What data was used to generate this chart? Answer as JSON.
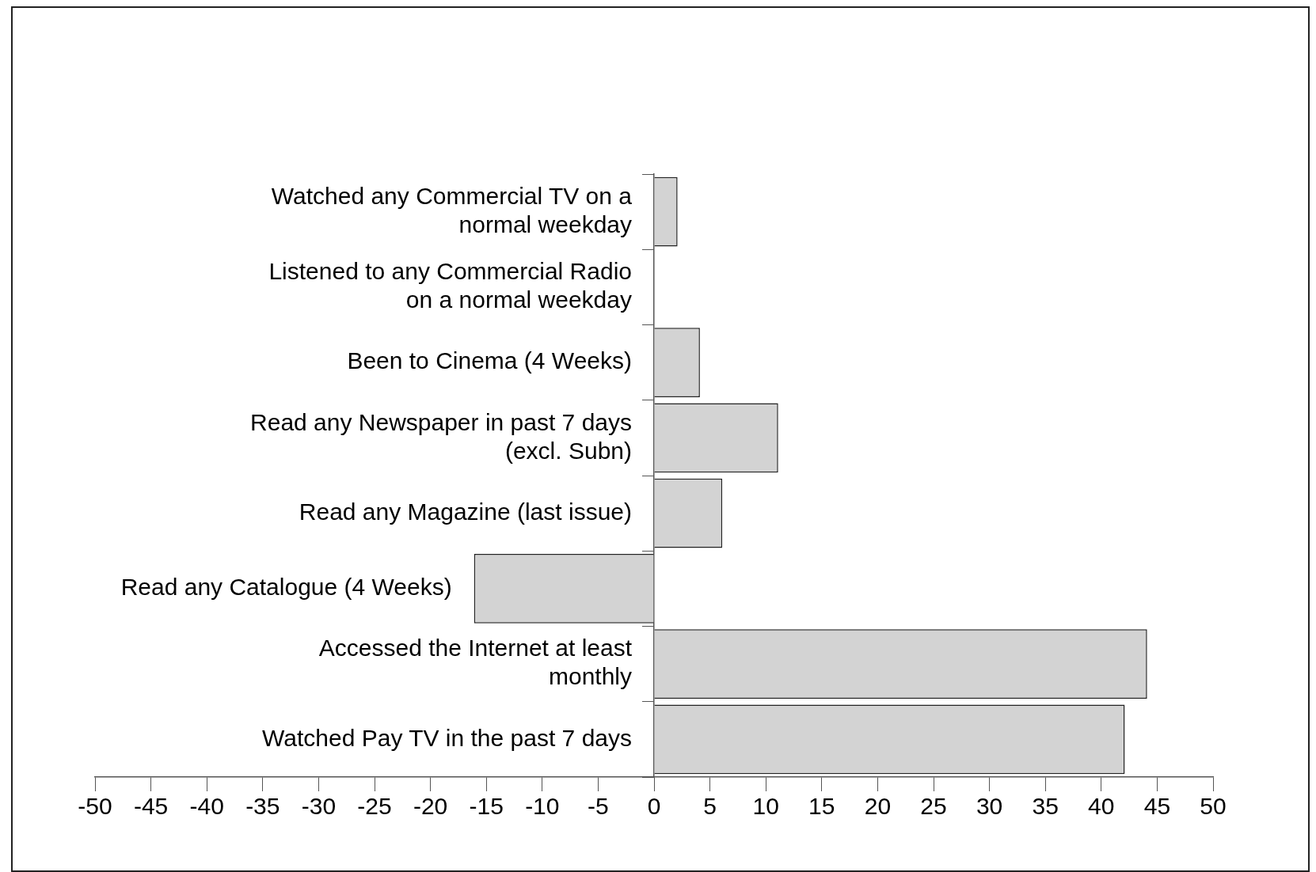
{
  "chart_data": {
    "type": "bar",
    "orientation": "horizontal",
    "categories": [
      "Watched any Commercial TV on a normal weekday",
      "Listened to any Commercial Radio on a normal weekday",
      "Been to Cinema (4 Weeks)",
      "Read any Newspaper in past 7 days (excl. Subn)",
      "Read any Magazine (last issue)",
      "Read any Catalogue (4 Weeks)",
      "Accessed the Internet at least monthly",
      "Watched Pay TV in the past 7 days"
    ],
    "values": [
      2.1,
      0,
      4.1,
      11.1,
      6.1,
      -16.1,
      44.1,
      42.1
    ],
    "color": "#d3d3d3",
    "xlim": [
      -50,
      50
    ],
    "xticks": [
      -50,
      -45,
      -40,
      -35,
      -30,
      -25,
      -20,
      -15,
      -10,
      -5,
      0,
      5,
      10,
      15,
      20,
      25,
      30,
      35,
      40,
      45,
      50
    ],
    "grid": false,
    "legend": false
  }
}
